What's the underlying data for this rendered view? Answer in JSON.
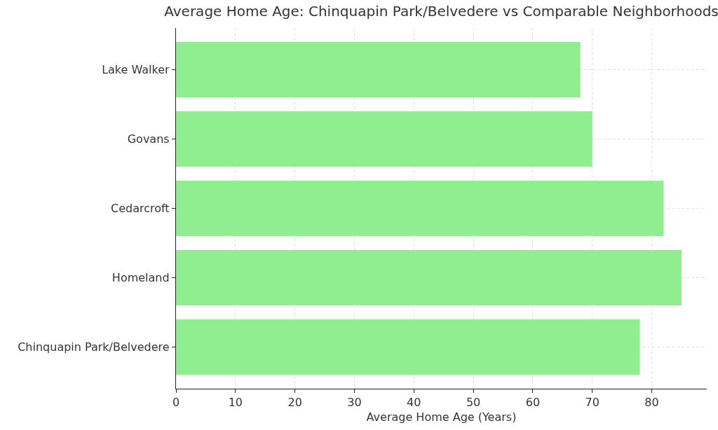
{
  "chart_data": {
    "type": "bar",
    "orientation": "horizontal",
    "title": "Average Home Age: Chinquapin Park/Belvedere vs Comparable Neighborhoods",
    "xlabel": "Average Home Age (Years)",
    "categories": [
      "Lake Walker",
      "Govans",
      "Cedarcroft",
      "Homeland",
      "Chinquapin Park/Belvedere"
    ],
    "values": [
      68,
      70,
      82,
      85,
      78
    ],
    "color": "#90ee90",
    "xlim": [
      0,
      89.25
    ],
    "xticks": [
      0,
      10,
      20,
      30,
      40,
      50,
      60,
      70,
      80
    ],
    "grid": true
  }
}
